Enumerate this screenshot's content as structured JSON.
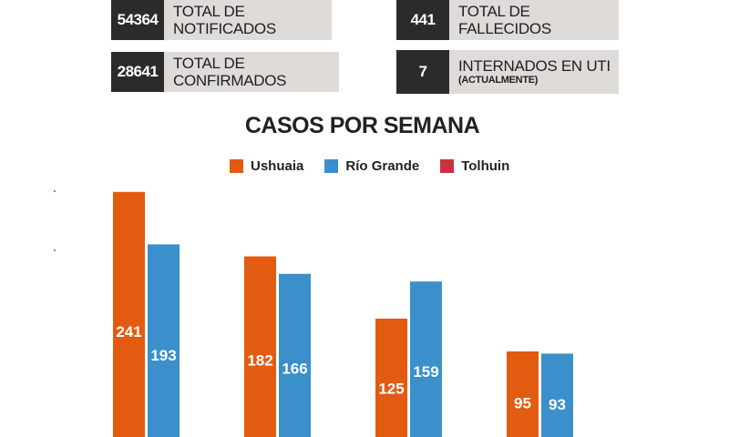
{
  "stats": {
    "notificados": {
      "value": "54364",
      "label": "TOTAL DE NOTIFICADOS"
    },
    "confirmados": {
      "value": "28641",
      "label": "TOTAL DE CONFIRMADOS"
    },
    "fallecidos": {
      "value": "441",
      "label": "TOTAL DE FALLECIDOS"
    },
    "uti": {
      "value": "7",
      "label": "INTERNADOS EN UTI",
      "sublabel": "(ACTUALMENTE)"
    }
  },
  "colors": {
    "ushuaia": "#e35b11",
    "rio_grande": "#3b8fca",
    "tolhuin": "#c73340",
    "dark": "#2b2b2b",
    "label_bg": "#dedbd8"
  },
  "chart_data": {
    "type": "bar",
    "title": "CASOS POR SEMANA",
    "categories": [
      "",
      "",
      "",
      ""
    ],
    "series": [
      {
        "name": "Ushuaia",
        "values": [
          241,
          182,
          125,
          95
        ]
      },
      {
        "name": "Río Grande",
        "values": [
          193,
          166,
          159,
          93
        ]
      },
      {
        "name": "Tolhuin",
        "values": [
          0,
          0,
          0,
          0
        ]
      }
    ],
    "data_labels": true,
    "legend_position": "top-center",
    "grid": false
  }
}
